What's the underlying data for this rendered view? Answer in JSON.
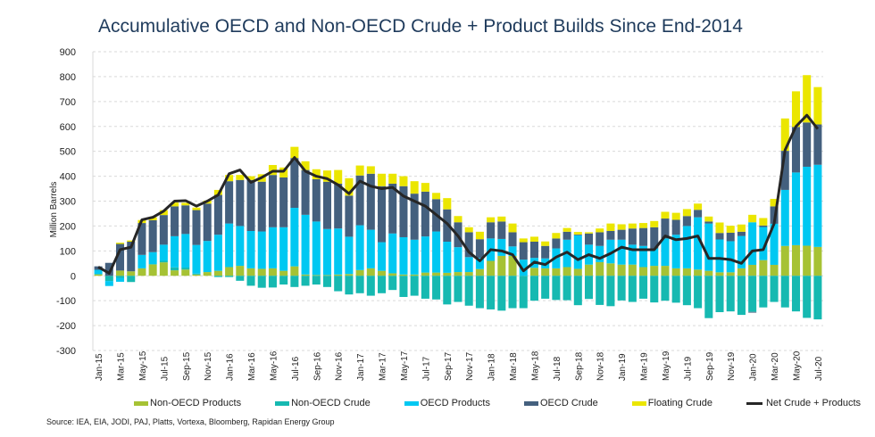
{
  "chart_data": {
    "type": "bar",
    "stacked": true,
    "title": "Accumulative OECD and Non-OECD Crude + Product Builds Since End-2014",
    "ylabel": "Million Barrels",
    "xlabel": "",
    "ylim": [
      -300,
      900
    ],
    "yticks": [
      900,
      800,
      700,
      600,
      500,
      400,
      300,
      200,
      100,
      0,
      -100,
      -200,
      -300
    ],
    "grid": "horizontal dashed",
    "legend_position": "bottom",
    "source": "Source: IEA, EIA, JODI, PAJ, Platts, Vortexa, Bloomberg, Rapidan Energy Group",
    "categories": [
      "Jan-15",
      "Feb-15",
      "Mar-15",
      "Apr-15",
      "May-15",
      "Jun-15",
      "Jul-15",
      "Aug-15",
      "Sep-15",
      "Oct-15",
      "Nov-15",
      "Dec-15",
      "Jan-16",
      "Feb-16",
      "Mar-16",
      "Apr-16",
      "May-16",
      "Jun-16",
      "Jul-16",
      "Aug-16",
      "Sep-16",
      "Oct-16",
      "Nov-16",
      "Dec-16",
      "Jan-17",
      "Feb-17",
      "Mar-17",
      "Apr-17",
      "May-17",
      "Jun-17",
      "Jul-17",
      "Aug-17",
      "Sep-17",
      "Oct-17",
      "Nov-17",
      "Dec-17",
      "Jan-18",
      "Feb-18",
      "Mar-18",
      "Apr-18",
      "May-18",
      "Jun-18",
      "Jul-18",
      "Aug-18",
      "Sep-18",
      "Oct-18",
      "Nov-18",
      "Dec-18",
      "Jan-19",
      "Feb-19",
      "Mar-19",
      "Apr-19",
      "May-19",
      "Jun-19",
      "Jul-19",
      "Aug-19",
      "Sep-19",
      "Oct-19",
      "Nov-19",
      "Dec-19",
      "Jan-20",
      "Feb-20",
      "Mar-20",
      "Apr-20",
      "May-20",
      "Jun-20",
      "Jul-20"
    ],
    "tick_label_every": 2,
    "series": [
      {
        "name": "Non-OECD Products",
        "type": "bar",
        "color": "#a6c234",
        "values": [
          6,
          0,
          21,
          18,
          30,
          46,
          54,
          22,
          25,
          5,
          15,
          20,
          35,
          40,
          30,
          28,
          30,
          20,
          38,
          5,
          3,
          3,
          5,
          7,
          23,
          30,
          20,
          10,
          5,
          5,
          13,
          13,
          12,
          15,
          15,
          27,
          60,
          80,
          80,
          0,
          32,
          30,
          30,
          35,
          28,
          45,
          55,
          50,
          45,
          45,
          35,
          40,
          40,
          30,
          30,
          25,
          20,
          14,
          14,
          30,
          44,
          63,
          44,
          120,
          123,
          121,
          116
        ]
      },
      {
        "name": "Non-OECD Crude",
        "type": "bar",
        "color": "#16b9b1",
        "values": [
          0,
          -21,
          -8,
          -25,
          0,
          0,
          6,
          12,
          8,
          4,
          0,
          -5,
          -5,
          -20,
          -40,
          -48,
          -47,
          -35,
          -45,
          -40,
          -35,
          -45,
          -62,
          -75,
          -70,
          -80,
          -70,
          -57,
          -85,
          -80,
          -92,
          -95,
          -115,
          -105,
          -120,
          -130,
          -135,
          -140,
          -130,
          -130,
          -100,
          -92,
          -97,
          -98,
          -118,
          -93,
          -117,
          -122,
          -99,
          -105,
          -92,
          -107,
          -100,
          -108,
          -118,
          -130,
          -170,
          -146,
          -143,
          -157,
          -145,
          -127,
          -105,
          -127,
          -143,
          -169,
          -175
        ]
      },
      {
        "name": "OECD Products",
        "type": "bar",
        "color": "#00c8f2",
        "values": [
          18,
          -20,
          -16,
          0,
          54,
          49,
          65,
          125,
          135,
          115,
          125,
          145,
          175,
          160,
          150,
          150,
          165,
          175,
          235,
          240,
          215,
          185,
          185,
          150,
          180,
          155,
          115,
          160,
          150,
          140,
          145,
          165,
          125,
          100,
          60,
          45,
          90,
          68,
          38,
          65,
          40,
          40,
          80,
          110,
          135,
          80,
          65,
          95,
          100,
          80,
          85,
          70,
          110,
          135,
          170,
          210,
          190,
          132,
          125,
          130,
          171,
          133,
          165,
          225,
          292,
          317,
          330
        ]
      },
      {
        "name": "OECD Crude",
        "type": "bar",
        "color": "#44607e",
        "values": [
          14,
          52,
          107,
          119,
          128,
          128,
          119,
          120,
          115,
          140,
          150,
          160,
          170,
          185,
          205,
          200,
          210,
          200,
          200,
          180,
          170,
          190,
          180,
          165,
          200,
          225,
          225,
          200,
          205,
          185,
          180,
          130,
          130,
          100,
          100,
          75,
          65,
          70,
          57,
          70,
          65,
          50,
          40,
          32,
          3,
          45,
          55,
          35,
          40,
          65,
          72,
          85,
          80,
          60,
          40,
          30,
          8,
          26,
          34,
          17,
          -3,
          6,
          70,
          157,
          183,
          178,
          162
        ]
      },
      {
        "name": "Floating Crude",
        "type": "bar",
        "color": "#ebe600",
        "values": [
          0,
          0,
          5,
          5,
          12,
          12,
          20,
          15,
          10,
          10,
          12,
          20,
          25,
          20,
          15,
          30,
          40,
          40,
          45,
          35,
          40,
          45,
          55,
          70,
          40,
          30,
          50,
          40,
          40,
          50,
          35,
          25,
          45,
          25,
          20,
          30,
          20,
          20,
          35,
          15,
          20,
          18,
          22,
          15,
          10,
          5,
          15,
          30,
          22,
          20,
          20,
          25,
          27,
          28,
          28,
          25,
          20,
          42,
          28,
          29,
          30,
          30,
          30,
          130,
          143,
          190,
          150
        ]
      },
      {
        "name": "Net Crude + Products",
        "type": "line",
        "color": "#262626",
        "values": [
          35,
          10,
          105,
          115,
          225,
          235,
          260,
          300,
          302,
          280,
          300,
          325,
          410,
          425,
          375,
          395,
          420,
          420,
          475,
          420,
          400,
          390,
          365,
          330,
          380,
          360,
          350,
          355,
          320,
          300,
          280,
          245,
          210,
          160,
          95,
          60,
          105,
          100,
          85,
          20,
          55,
          45,
          75,
          95,
          65,
          85,
          70,
          90,
          115,
          105,
          105,
          105,
          160,
          145,
          150,
          160,
          70,
          70,
          65,
          50,
          100,
          105,
          210,
          505,
          600,
          645,
          590
        ]
      }
    ]
  }
}
